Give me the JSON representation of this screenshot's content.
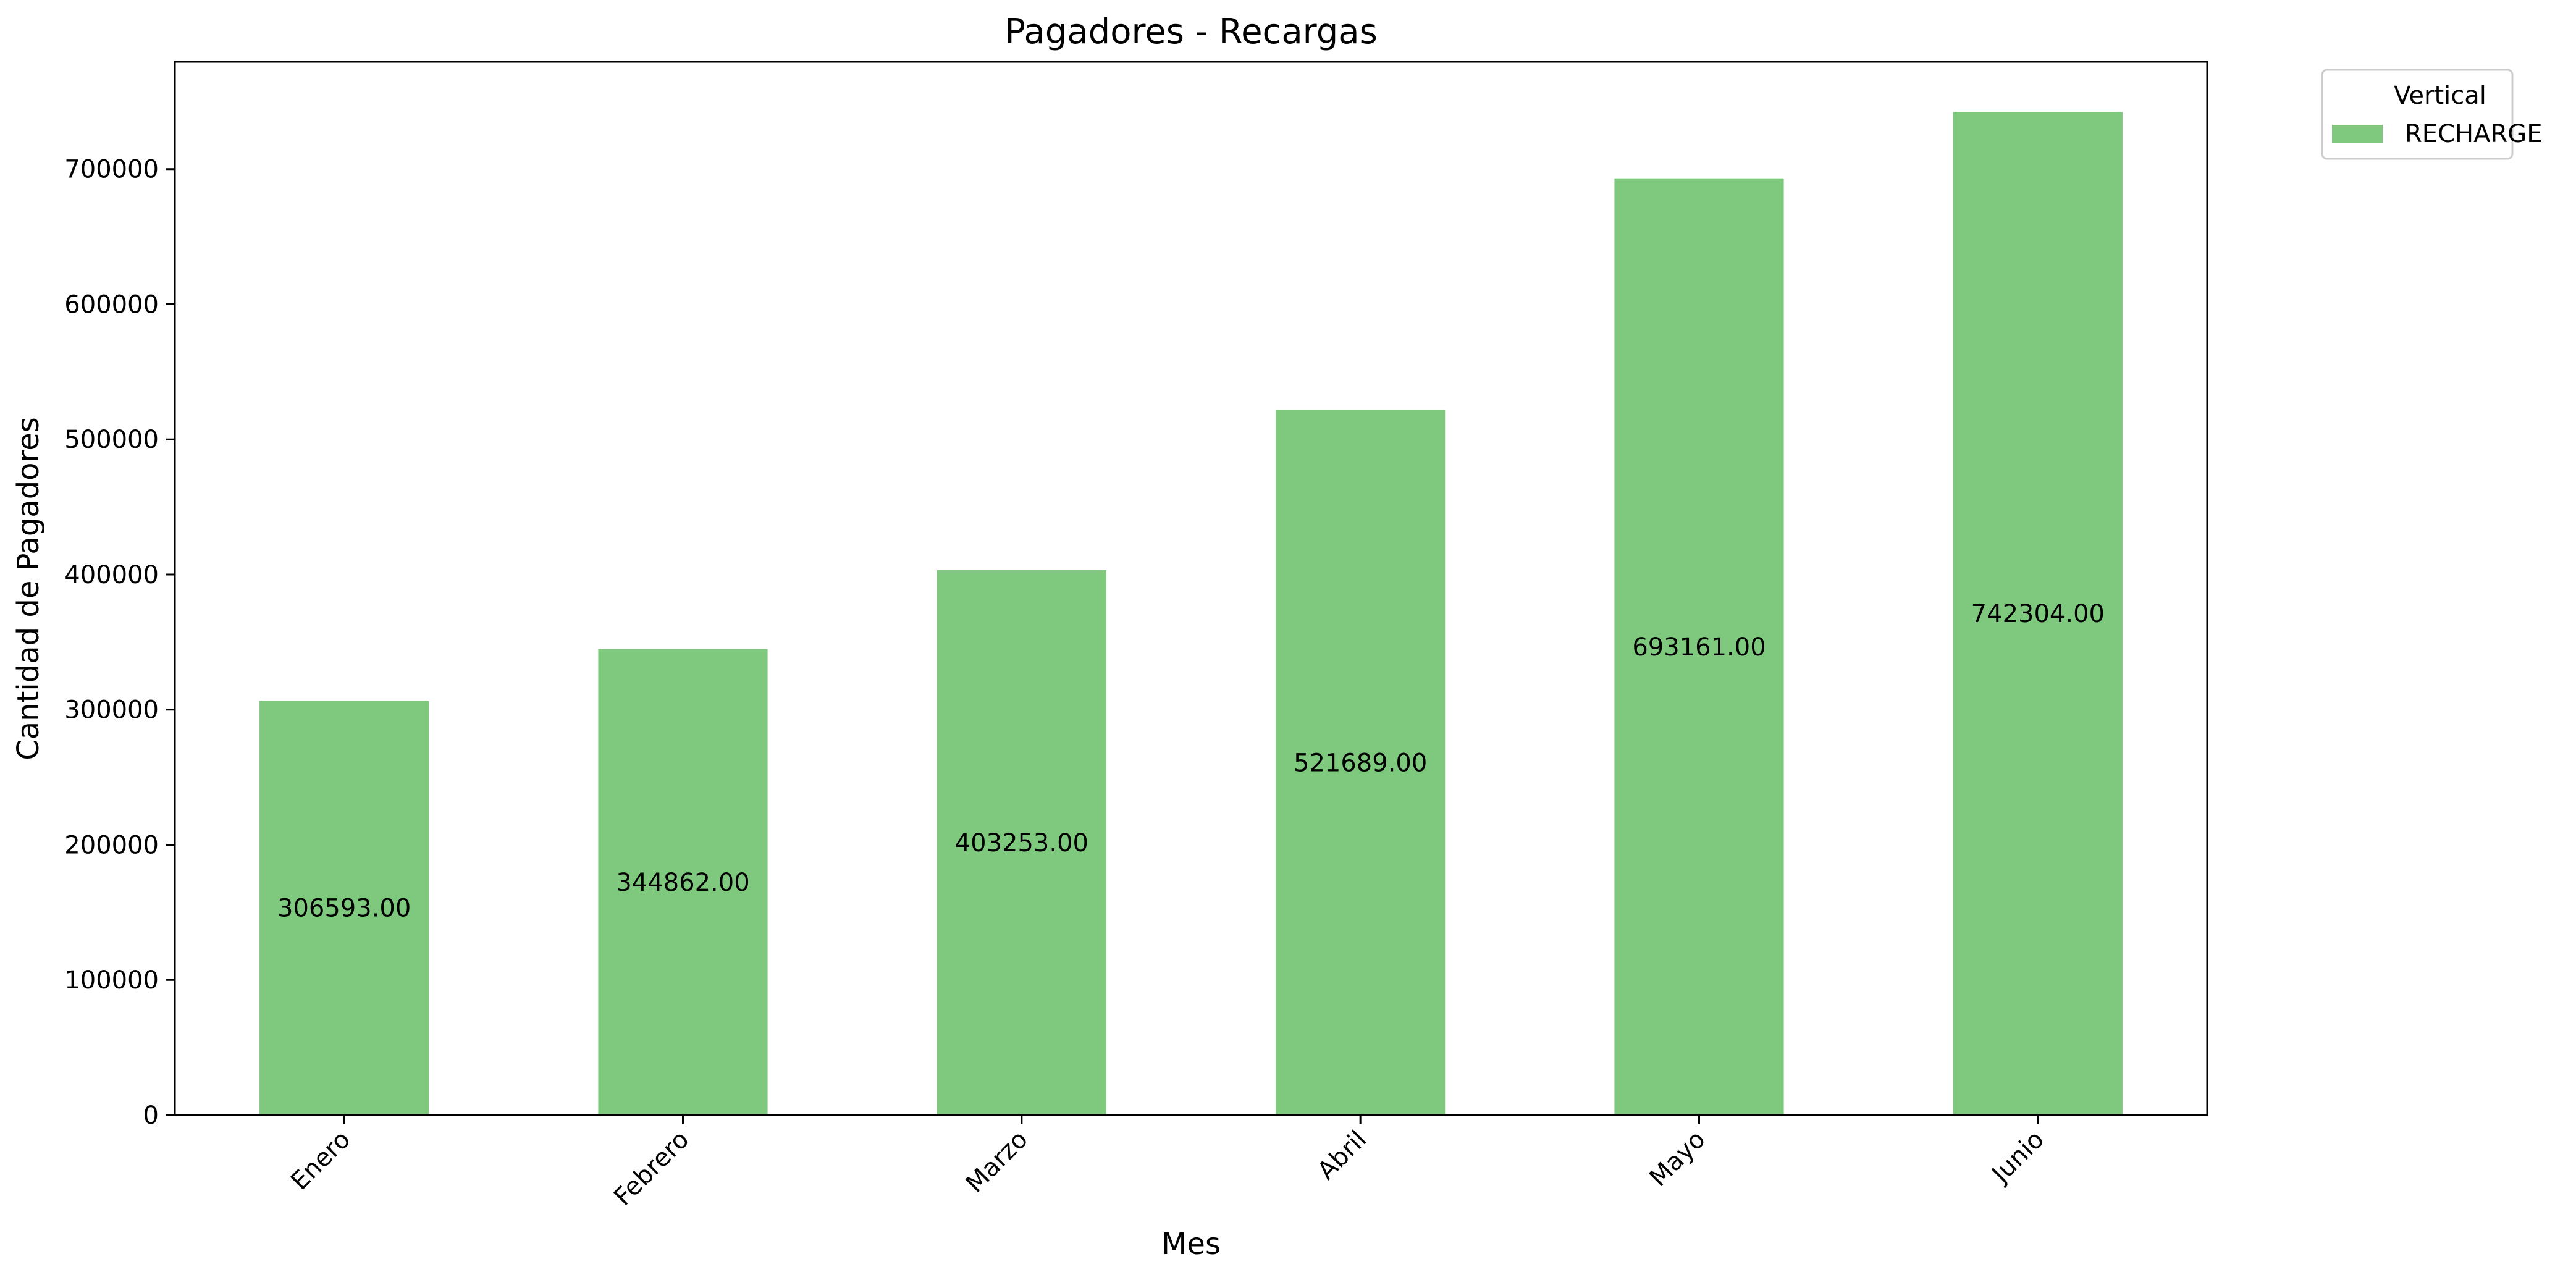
{
  "chart_data": {
    "type": "bar",
    "title": "Pagadores - Recargas",
    "xlabel": "Mes",
    "ylabel": "Cantidad de Pagadores",
    "categories": [
      "Enero",
      "Febrero",
      "Marzo",
      "Abril",
      "Mayo",
      "Junio"
    ],
    "series": [
      {
        "name": "RECHARGE",
        "color": "#7fc97f",
        "values": [
          306593,
          344862,
          403253,
          521689,
          693161,
          742304
        ]
      }
    ],
    "data_labels": [
      "306593.00",
      "344862.00",
      "403253.00",
      "521689.00",
      "693161.00",
      "742304.00"
    ],
    "yticks": [
      0,
      100000,
      200000,
      300000,
      400000,
      500000,
      600000,
      700000
    ],
    "ylim": [
      0,
      779419
    ],
    "grid": false,
    "legend": {
      "title": "Vertical",
      "placement": "outside-top-right"
    },
    "xtick_rotation": 45
  }
}
